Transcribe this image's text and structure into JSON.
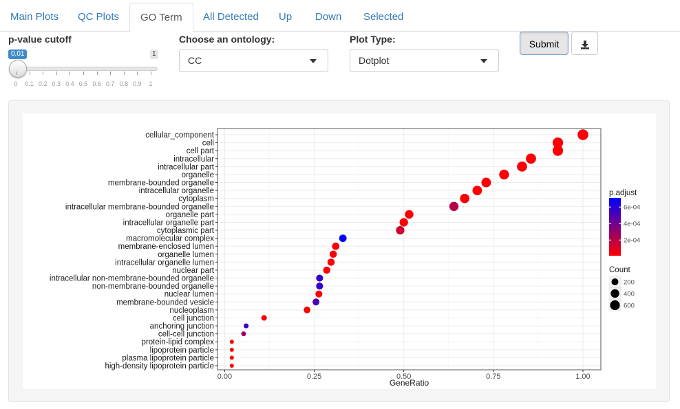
{
  "tabs": [
    {
      "label": "Main Plots",
      "active": false
    },
    {
      "label": "QC Plots",
      "active": false
    },
    {
      "label": "GO Term",
      "active": true
    },
    {
      "label": "All Detected",
      "active": false
    },
    {
      "label": "Up",
      "active": false
    },
    {
      "label": "Down",
      "active": false
    },
    {
      "label": "Selected",
      "active": false
    }
  ],
  "controls": {
    "pvalue": {
      "label": "p-value cutoff",
      "value": "0.01",
      "max": "1",
      "level": 0.01,
      "ticks": [
        "0",
        "0.1",
        "0.2",
        "0.3",
        "0.4",
        "0.5",
        "0.6",
        "0.7",
        "0.8",
        "0.9",
        "1"
      ]
    },
    "ontology": {
      "label": "Choose an ontology:",
      "value": "CC"
    },
    "plot_type": {
      "label": "Plot Type:",
      "value": "Dotplot"
    },
    "submit_label": "Submit",
    "download_icon": "download-icon"
  },
  "chart_data": {
    "type": "scatter",
    "xlabel": "GeneRatio",
    "ylabel": "",
    "xlim": [
      -0.02,
      1.05
    ],
    "xticks": [
      {
        "value": 0,
        "label": "0.00"
      },
      {
        "value": 0.25,
        "label": "0.25"
      },
      {
        "value": 0.5,
        "label": "0.50"
      },
      {
        "value": 0.75,
        "label": "0.75"
      },
      {
        "value": 1,
        "label": "1.00"
      }
    ],
    "grid": true,
    "color_scale": {
      "title": "p.adjust",
      "low_color": "#FF0000",
      "high_color": "#0000FF",
      "min": 1e-05,
      "max": 0.00071,
      "ticks": [
        {
          "value": 0.0002,
          "label": "2e-04"
        },
        {
          "value": 0.0004,
          "label": "4e-04"
        },
        {
          "value": 0.0006,
          "label": "6e-04"
        }
      ]
    },
    "size_scale": {
      "title": "Count",
      "ticks": [
        {
          "value": 200,
          "label": "200"
        },
        {
          "value": 400,
          "label": "400"
        },
        {
          "value": 600,
          "label": "600"
        }
      ],
      "max_count": 780
    },
    "legend_position": "right",
    "points": [
      {
        "term": "cellular_component",
        "gene_ratio": 1.0,
        "count": 780,
        "p_adjust": 2e-05
      },
      {
        "term": "cell",
        "gene_ratio": 0.93,
        "count": 725,
        "p_adjust": 2e-05
      },
      {
        "term": "cell part",
        "gene_ratio": 0.93,
        "count": 725,
        "p_adjust": 2e-05
      },
      {
        "term": "intracellular",
        "gene_ratio": 0.855,
        "count": 667,
        "p_adjust": 2e-05
      },
      {
        "term": "intracellular part",
        "gene_ratio": 0.83,
        "count": 647,
        "p_adjust": 2e-05
      },
      {
        "term": "organelle",
        "gene_ratio": 0.78,
        "count": 608,
        "p_adjust": 2e-05
      },
      {
        "term": "membrane-bounded organelle",
        "gene_ratio": 0.73,
        "count": 569,
        "p_adjust": 2e-05
      },
      {
        "term": "intracellular organelle",
        "gene_ratio": 0.705,
        "count": 550,
        "p_adjust": 2e-05
      },
      {
        "term": "cytoplasm",
        "gene_ratio": 0.67,
        "count": 522,
        "p_adjust": 2e-05
      },
      {
        "term": "intracellular membrane-bounded organelle",
        "gene_ratio": 0.64,
        "count": 499,
        "p_adjust": 0.00022
      },
      {
        "term": "organelle part",
        "gene_ratio": 0.515,
        "count": 402,
        "p_adjust": 2e-05
      },
      {
        "term": "intracellular organelle part",
        "gene_ratio": 0.5,
        "count": 390,
        "p_adjust": 2e-05
      },
      {
        "term": "cytoplasmic part",
        "gene_ratio": 0.49,
        "count": 382,
        "p_adjust": 0.00014
      },
      {
        "term": "macromolecular complex",
        "gene_ratio": 0.33,
        "count": 257,
        "p_adjust": 0.0007
      },
      {
        "term": "membrane-enclosed lumen",
        "gene_ratio": 0.31,
        "count": 242,
        "p_adjust": 2e-05
      },
      {
        "term": "organelle lumen",
        "gene_ratio": 0.303,
        "count": 236,
        "p_adjust": 2e-05
      },
      {
        "term": "intracellular organelle lumen",
        "gene_ratio": 0.297,
        "count": 232,
        "p_adjust": 2e-05
      },
      {
        "term": "nuclear part",
        "gene_ratio": 0.285,
        "count": 222,
        "p_adjust": 2e-05
      },
      {
        "term": "intracellular non-membrane-bounded organelle",
        "gene_ratio": 0.265,
        "count": 207,
        "p_adjust": 0.00058
      },
      {
        "term": "non-membrane-bounded organelle",
        "gene_ratio": 0.265,
        "count": 207,
        "p_adjust": 0.00058
      },
      {
        "term": "nuclear lumen",
        "gene_ratio": 0.263,
        "count": 205,
        "p_adjust": 2e-05
      },
      {
        "term": "membrane-bounded vesicle",
        "gene_ratio": 0.255,
        "count": 199,
        "p_adjust": 0.0005
      },
      {
        "term": "nucleoplasm",
        "gene_ratio": 0.23,
        "count": 179,
        "p_adjust": 2e-05
      },
      {
        "term": "cell junction",
        "gene_ratio": 0.11,
        "count": 86,
        "p_adjust": 2e-05
      },
      {
        "term": "anchoring junction",
        "gene_ratio": 0.06,
        "count": 47,
        "p_adjust": 0.00055
      },
      {
        "term": "cell-cell junction",
        "gene_ratio": 0.053,
        "count": 41,
        "p_adjust": 0.0003
      },
      {
        "term": "protein-lipid complex",
        "gene_ratio": 0.02,
        "count": 16,
        "p_adjust": 2e-05
      },
      {
        "term": "lipoprotein particle",
        "gene_ratio": 0.02,
        "count": 16,
        "p_adjust": 2e-05
      },
      {
        "term": "plasma lipoprotein particle",
        "gene_ratio": 0.02,
        "count": 16,
        "p_adjust": 2e-05
      },
      {
        "term": "high-density lipoprotein particle",
        "gene_ratio": 0.02,
        "count": 16,
        "p_adjust": 2e-05
      }
    ]
  }
}
